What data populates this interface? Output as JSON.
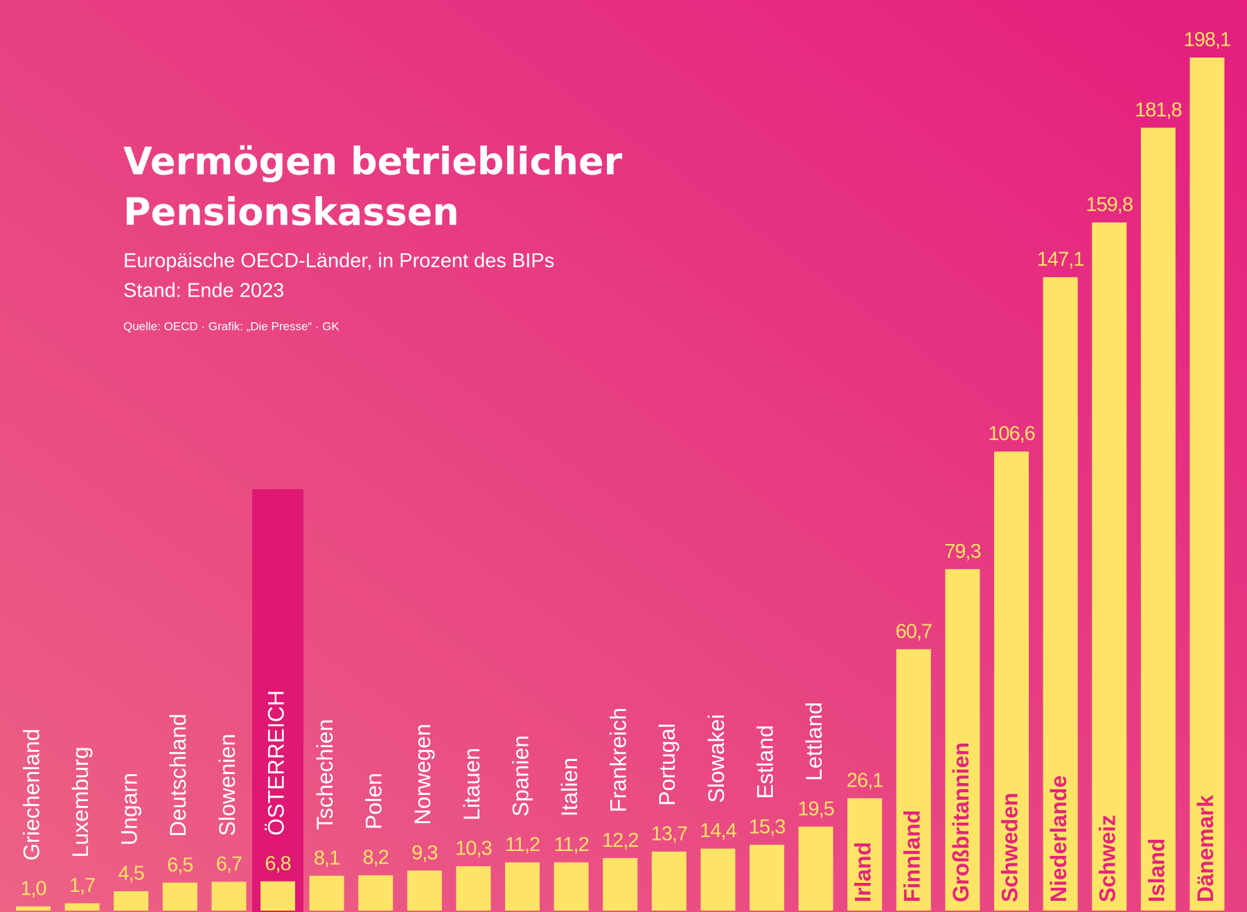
{
  "chart_data": {
    "type": "bar",
    "title": "Vermögen betrieblicher",
    "title_line2": "Pensionskassen",
    "subtitle": "Europäische OECD-Länder, in Prozent des BIPs",
    "subtitle_line2": "Stand: Ende 2023",
    "source": "Quelle: OECD · Grafik: „Die Presse“ · GK",
    "categories": [
      "Griechenland",
      "Luxemburg",
      "Ungarn",
      "Deutschland",
      "Slowenien",
      "ÖSTERREICH",
      "Tschechien",
      "Polen",
      "Norwegen",
      "Litauen",
      "Spanien",
      "Italien",
      "Frankreich",
      "Portugal",
      "Slowakei",
      "Estland",
      "Lettland",
      "Irland",
      "Finnland",
      "Großbritannien",
      "Schweden",
      "Niederlande",
      "Schweiz",
      "Island",
      "Dänemark"
    ],
    "values": [
      1.0,
      1.7,
      4.5,
      6.5,
      6.7,
      6.8,
      8.1,
      8.2,
      9.3,
      10.3,
      11.2,
      11.2,
      12.2,
      13.7,
      14.4,
      15.3,
      19.5,
      26.1,
      60.7,
      79.3,
      106.6,
      147.1,
      159.8,
      181.8,
      198.1
    ],
    "value_labels": [
      "1,0",
      "1,7",
      "4,5",
      "6,5",
      "6,7",
      "6,8",
      "8,1",
      "8,2",
      "9,3",
      "10,3",
      "11,2",
      "11,2",
      "12,2",
      "13,7",
      "14,4",
      "15,3",
      "19,5",
      "26,1",
      "60,7",
      "79,3",
      "106,6",
      "147,1",
      "159,8",
      "181,8",
      "198,1"
    ],
    "color": "#fde466",
    "highlight_index": 5,
    "highlight_color": "#de1873"
  }
}
